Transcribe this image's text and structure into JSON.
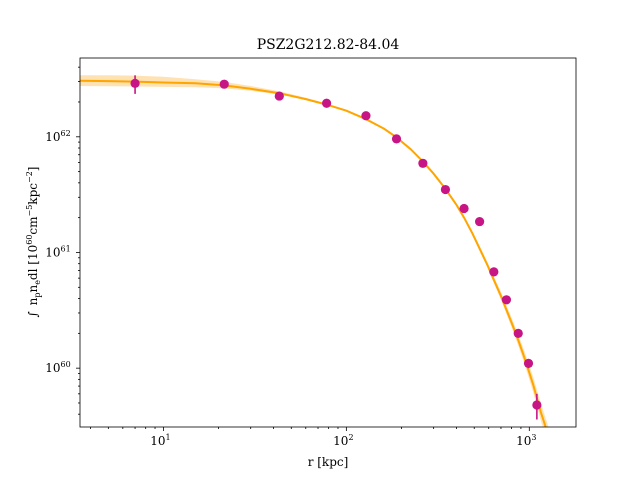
{
  "chart_data": {
    "type": "scatter",
    "title": "PSZ2G212.82-84.04",
    "xlabel": "r [kpc]",
    "ylabel": "∫ n_p n_e dl [10^60 cm^-5 kpc^-2]",
    "xscale": "log",
    "yscale": "log",
    "xlim": [
      3.5,
      1800
    ],
    "ylim": [
      3.1e+59,
      4.8e+62
    ],
    "grid": false,
    "x_ticks": [
      {
        "value": 10,
        "base": "10",
        "exp": "1"
      },
      {
        "value": 100,
        "base": "10",
        "exp": "2"
      },
      {
        "value": 1000,
        "base": "10",
        "exp": "3"
      }
    ],
    "y_ticks": [
      {
        "value": 1e+60,
        "base": "10",
        "exp": "60"
      },
      {
        "value": 1e+61,
        "base": "10",
        "exp": "61"
      },
      {
        "value": 1e+62,
        "base": "10",
        "exp": "62"
      }
    ],
    "colors": {
      "points": "#c71585",
      "model": "#ffa500",
      "band": "#ffd89a"
    },
    "series": [
      {
        "kind": "points",
        "x": [
          7.0,
          21.5,
          43,
          78,
          128,
          188,
          262,
          348,
          440,
          535,
          640,
          750,
          870,
          990,
          1100
        ],
        "y": [
          2.9e+62,
          2.85e+62,
          2.25e+62,
          1.95e+62,
          1.52e+62,
          9.6e+61,
          5.9e+61,
          3.5e+61,
          2.4e+61,
          1.85e+61,
          6.8e+60,
          3.9e+60,
          2e+60,
          1.1e+60,
          4.8e+59
        ],
        "yerr_low": [
          2.35e+62,
          2.75e+62,
          2.18e+62,
          1.9e+62,
          1.48e+62,
          9.3e+61,
          5.7e+61,
          3.38e+61,
          2.3e+61,
          1.78e+61,
          6.5e+60,
          3.7e+60,
          1.85e+60,
          1e+60,
          3.6e+59
        ],
        "yerr_high": [
          3.4e+62,
          2.95e+62,
          2.32e+62,
          2e+62,
          1.56e+62,
          9.9e+61,
          6.1e+61,
          3.62e+61,
          2.5e+61,
          1.92e+61,
          7.1e+60,
          4.1e+60,
          2.15e+60,
          1.2e+60,
          6e+59
        ]
      },
      {
        "kind": "model",
        "x": [
          3.5,
          5,
          7,
          10,
          15,
          21.5,
          30,
          43,
          60,
          78,
          100,
          128,
          160,
          188,
          225,
          262,
          300,
          348,
          400,
          440,
          490,
          535,
          590,
          640,
          700,
          750,
          810,
          870,
          930,
          990,
          1050,
          1100,
          1160,
          1210,
          1270,
          1300
        ],
        "y": [
          3.05e+62,
          3.03e+62,
          3e+62,
          2.95e+62,
          2.9e+62,
          2.78e+62,
          2.6e+62,
          2.38e+62,
          2.12e+62,
          1.9e+62,
          1.68e+62,
          1.42e+62,
          1.18e+62,
          9.9e+61,
          7.8e+61,
          6.1e+61,
          4.8e+61,
          3.55e+61,
          2.58e+61,
          2e+61,
          1.45e+61,
          1.08e+61,
          7.8e+60,
          5.8e+60,
          4.2e+60,
          3.2e+60,
          2.35e+60,
          1.75e+60,
          1.3e+60,
          9.6e+59,
          7.2e+59,
          5.5e+59,
          4.1e+59,
          3.35e+59,
          2.6e+59,
          2.3e+59
        ],
        "band_low": [
          2.75e+62,
          2.74e+62,
          2.72e+62,
          2.7e+62,
          2.68e+62,
          2.62e+62,
          2.5e+62,
          2.32e+62,
          2.08e+62,
          1.87e+62,
          1.65e+62,
          1.4e+62,
          1.16e+62,
          9.7e+61,
          7.65e+61,
          5.95e+61,
          4.68e+61,
          3.45e+61,
          2.5e+61,
          1.93e+61,
          1.39e+61,
          1.03e+61,
          7.4e+60,
          5.45e+60,
          3.9e+60,
          2.95e+60,
          2.14e+60,
          1.57e+60,
          1.15e+60,
          8.4e+59,
          6.2e+59,
          4.7e+59,
          3.45e+59,
          2.8e+59,
          2.15e+59,
          1.9e+59
        ],
        "band_high": [
          3.4e+62,
          3.4e+62,
          3.38e+62,
          3.3e+62,
          3.15e+62,
          2.98e+62,
          2.75e+62,
          2.48e+62,
          2.18e+62,
          1.94e+62,
          1.71e+62,
          1.45e+62,
          1.2e+62,
          1.01e+62,
          8e+61,
          6.25e+61,
          4.92e+61,
          3.66e+61,
          2.67e+61,
          2.08e+61,
          1.52e+61,
          1.14e+61,
          8.25e+60,
          6.2e+60,
          4.55e+60,
          3.5e+60,
          2.6e+60,
          1.95e+60,
          1.48e+60,
          1.1e+60,
          8.4e+59,
          6.5e+59,
          4.9e+59,
          4e+59,
          3.15e+59,
          2.8e+59
        ]
      }
    ]
  }
}
